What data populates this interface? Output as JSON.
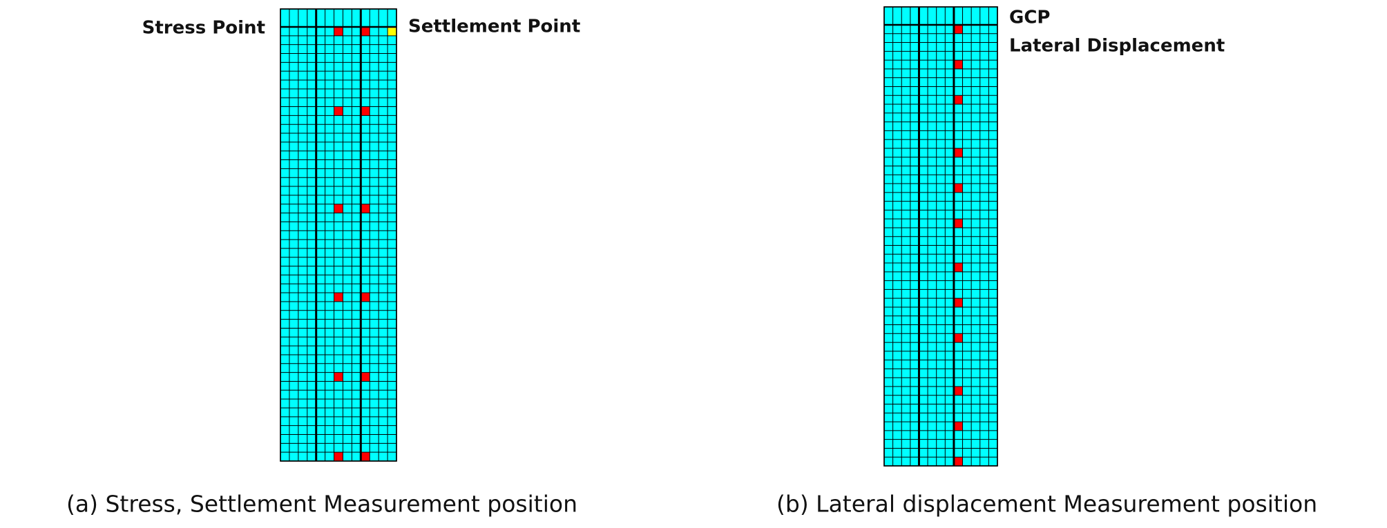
{
  "panels": [
    {
      "labels": [
        "Stress Point",
        "Settlement Point"
      ],
      "caption": "(a) Stress, Settlement Measurement position"
    },
    {
      "labels": [
        "GCP",
        "Lateral Displacement"
      ],
      "caption": "(b) Lateral displacement Measurement position"
    }
  ]
}
